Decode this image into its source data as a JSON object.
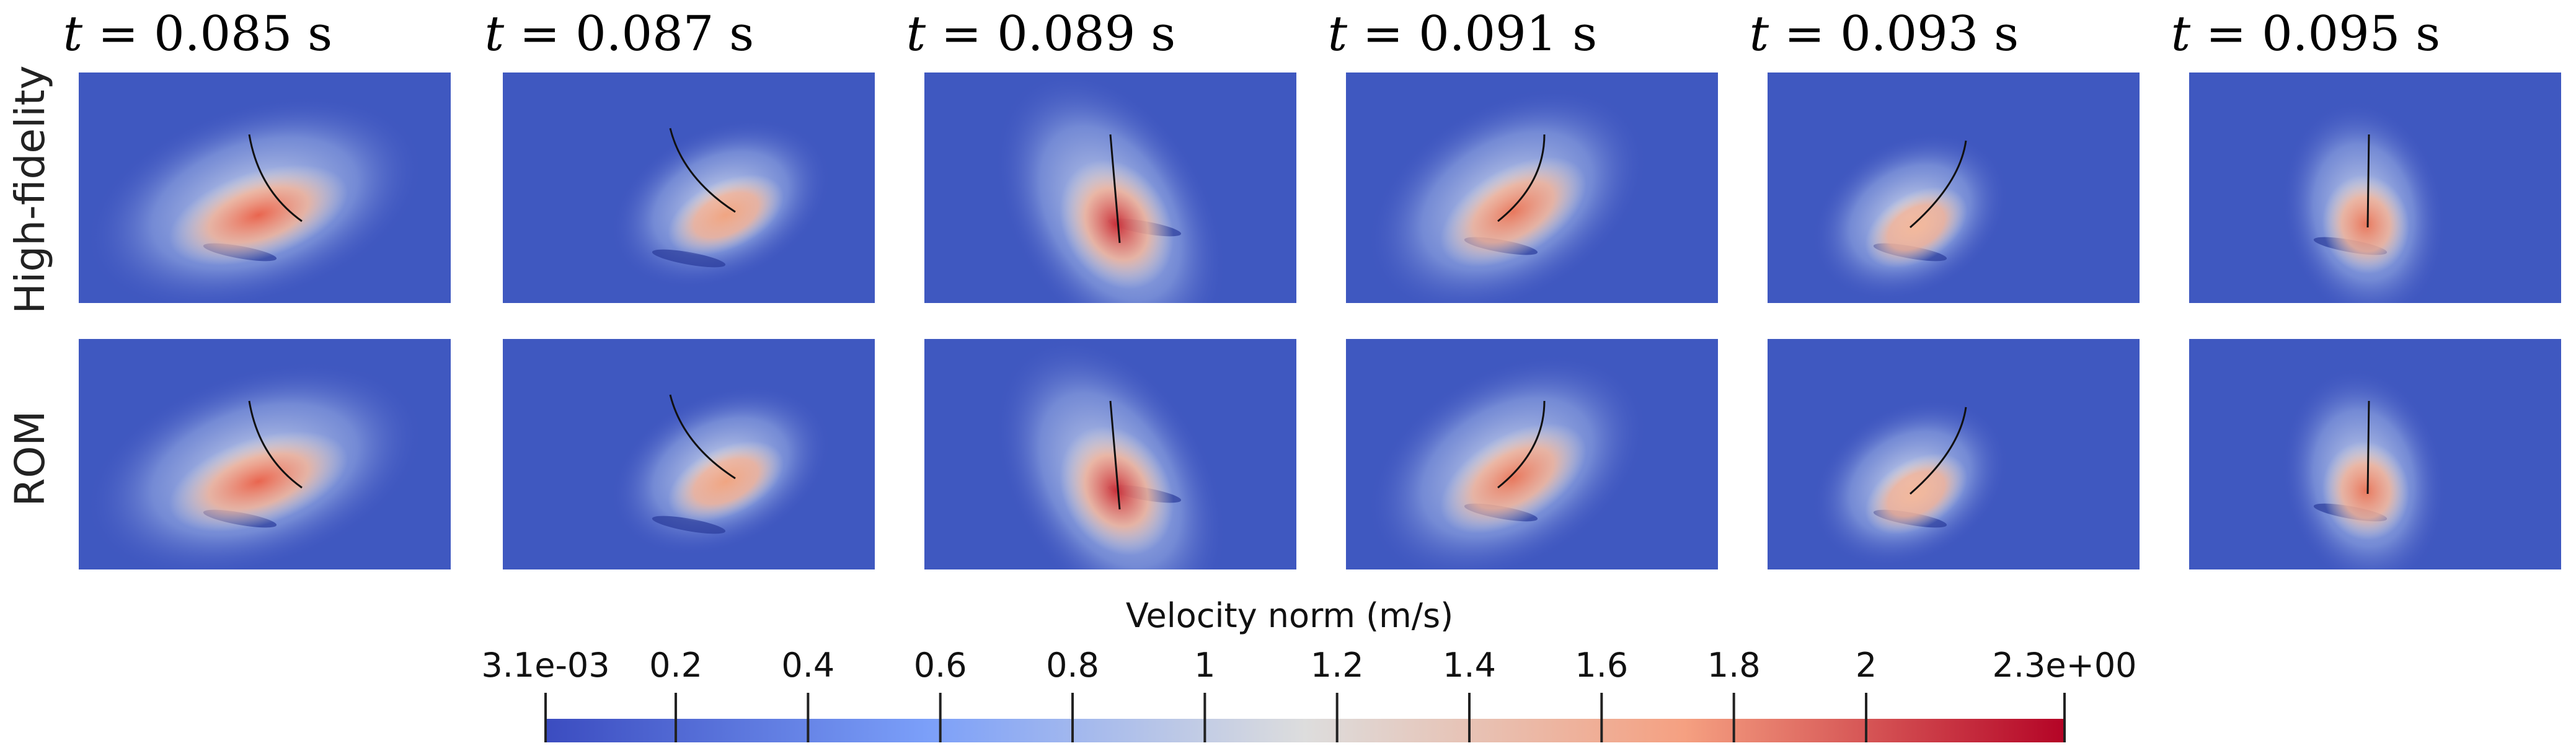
{
  "figure": {
    "time_labels": [
      {
        "prefix": "t",
        "value": " = 0.085 s"
      },
      {
        "prefix": "t",
        "value": " = 0.087 s"
      },
      {
        "prefix": "t",
        "value": " = 0.089 s"
      },
      {
        "prefix": "t",
        "value": " = 0.091 s"
      },
      {
        "prefix": "t",
        "value": " = 0.093 s"
      },
      {
        "prefix": "t",
        "value": " = 0.095 s"
      }
    ],
    "rows": [
      {
        "label": "High-fidelity"
      },
      {
        "label": "ROM"
      }
    ],
    "panels": [
      {
        "variant": 0
      },
      {
        "variant": 1
      },
      {
        "variant": 2
      },
      {
        "variant": 3
      },
      {
        "variant": 4
      },
      {
        "variant": 5
      }
    ]
  },
  "colorbar": {
    "title": "Velocity norm (m/s)",
    "min": 0.0031,
    "max": 2.3,
    "tick_values": [
      0.0031,
      0.2,
      0.4,
      0.6,
      0.8,
      1,
      1.2,
      1.4,
      1.6,
      1.8,
      2,
      2.3
    ],
    "tick_labels": [
      "3.1e-03",
      "0.2",
      "0.4",
      "0.6",
      "0.8",
      "1",
      "1.2",
      "1.4",
      "1.6",
      "1.8",
      "2",
      "2.3e+00"
    ],
    "colors": {
      "low": "#3b4cc0",
      "mid": "#dddddd",
      "high": "#b40426"
    }
  }
}
